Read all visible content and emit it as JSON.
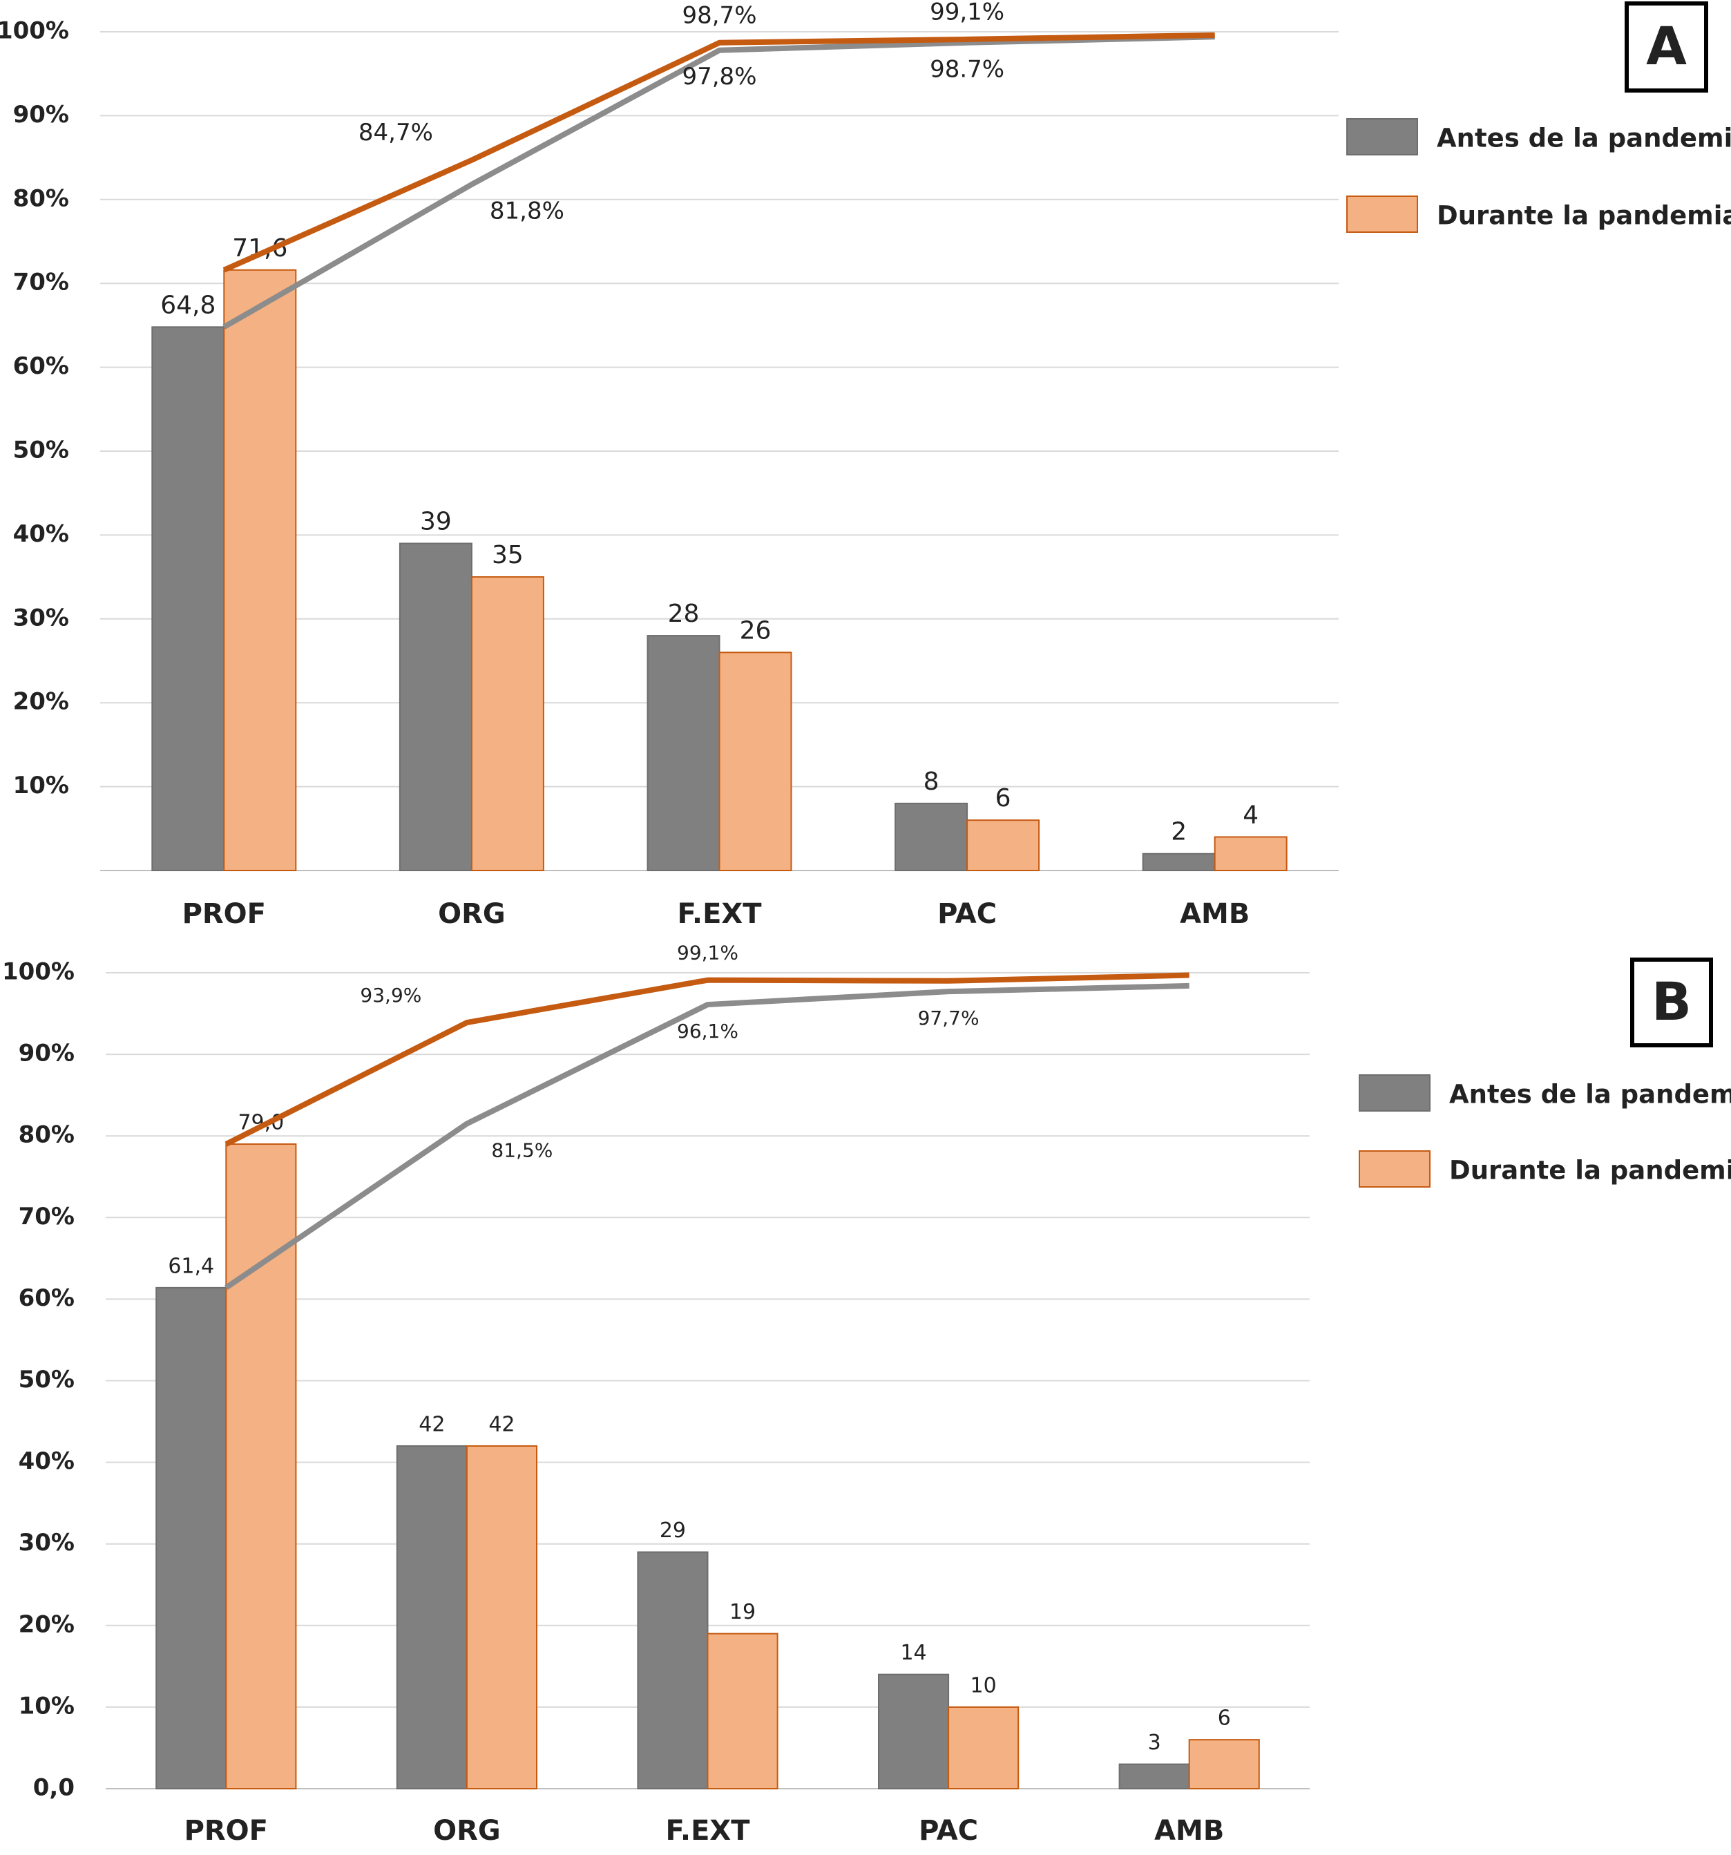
{
  "chart_data": [
    {
      "type": "pareto",
      "panel_label": "A",
      "categories": [
        "PROF",
        "ORG",
        "F.EXT",
        "PAC",
        "AMB"
      ],
      "ylim": [
        0,
        100
      ],
      "yticks": [
        {
          "value": 10,
          "label": "10%"
        },
        {
          "value": 20,
          "label": "20%"
        },
        {
          "value": 30,
          "label": "30%"
        },
        {
          "value": 40,
          "label": "40%"
        },
        {
          "value": 50,
          "label": "50%"
        },
        {
          "value": 60,
          "label": "60%"
        },
        {
          "value": 70,
          "label": "70%"
        },
        {
          "value": 80,
          "label": "80%"
        },
        {
          "value": 90,
          "label": "90%"
        },
        {
          "value": 100,
          "label": "100%"
        }
      ],
      "grid": true,
      "legend": "right",
      "series": [
        {
          "name": "Antes de la pandemia",
          "color": "#808080",
          "edge_color": "#6e6e6e",
          "values": [
            64.8,
            39,
            28,
            8,
            2
          ],
          "value_labels": [
            "64,8",
            "39",
            "28",
            "8",
            "2"
          ]
        },
        {
          "name": "Durante la pandemia",
          "color": "#f4b183",
          "edge_color": "#c55a11",
          "values": [
            71.6,
            35,
            26,
            6,
            4
          ],
          "value_labels": [
            "71,6",
            "35",
            "26",
            "6",
            "4"
          ]
        }
      ],
      "lines": [
        {
          "color": "#8c8c8c",
          "values": [
            64.8,
            81.8,
            97.8,
            98.7,
            99.4
          ],
          "value_labels": [
            null,
            "81,8%",
            "97,8%",
            "98.7%",
            null
          ]
        },
        {
          "color": "#c55a11",
          "values": [
            71.6,
            84.7,
            98.7,
            99.1,
            99.6
          ],
          "value_labels": [
            null,
            "84,7%",
            "98,7%",
            "99,1%",
            null
          ]
        }
      ]
    },
    {
      "type": "pareto",
      "panel_label": "B",
      "categories": [
        "PROF",
        "ORG",
        "F.EXT",
        "PAC",
        "AMB"
      ],
      "ylim": [
        0,
        100
      ],
      "yticks": [
        {
          "value": 0,
          "label": "0,0"
        },
        {
          "value": 10,
          "label": "10%"
        },
        {
          "value": 20,
          "label": "20%"
        },
        {
          "value": 30,
          "label": "30%"
        },
        {
          "value": 40,
          "label": "40%"
        },
        {
          "value": 50,
          "label": "50%"
        },
        {
          "value": 60,
          "label": "60%"
        },
        {
          "value": 70,
          "label": "70%"
        },
        {
          "value": 80,
          "label": "80%"
        },
        {
          "value": 90,
          "label": "90%"
        },
        {
          "value": 100,
          "label": "100%"
        }
      ],
      "grid": true,
      "legend": "right",
      "series": [
        {
          "name": "Antes de la pandemia",
          "color": "#808080",
          "edge_color": "#6e6e6e",
          "values": [
            61.4,
            42,
            29,
            14,
            3
          ],
          "value_labels": [
            "61,4",
            "42",
            "29",
            "14",
            "3"
          ]
        },
        {
          "name": "Durante la pandemia",
          "color": "#f4b183",
          "edge_color": "#c55a11",
          "values": [
            79.0,
            42,
            19,
            10,
            6
          ],
          "value_labels": [
            "79,0",
            "42",
            "19",
            "10",
            "6"
          ]
        }
      ],
      "lines": [
        {
          "color": "#8c8c8c",
          "values": [
            61.4,
            81.5,
            96.1,
            97.7,
            98.4
          ],
          "value_labels": [
            null,
            "81,5%",
            "96,1%",
            "97,7%",
            null
          ]
        },
        {
          "color": "#c55a11",
          "values": [
            79.0,
            93.9,
            99.1,
            99.0,
            99.7
          ],
          "value_labels": [
            null,
            "93,9%",
            "99,1%",
            null,
            null
          ]
        }
      ]
    }
  ]
}
